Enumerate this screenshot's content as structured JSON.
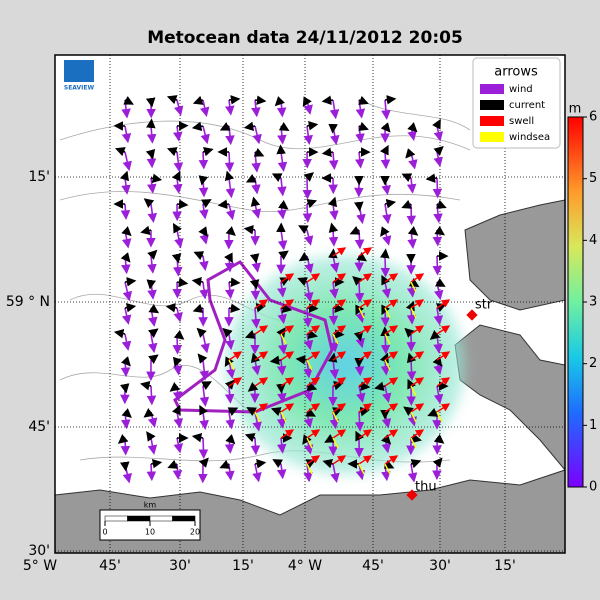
{
  "title": "Metocean data 24/11/2012 20:05",
  "logo": "SEAVIEW",
  "x_axis": {
    "labels": [
      "5° W",
      "45'",
      "30'",
      "15'",
      "4° W",
      "45'",
      "30'",
      "15'"
    ]
  },
  "y_axis": {
    "labels": [
      "15'",
      "59 ° N",
      "45'",
      "30'"
    ]
  },
  "legend": {
    "title": "arrows",
    "entries": [
      {
        "label": "wind",
        "color": "#9b1fd8"
      },
      {
        "label": "current",
        "color": "#000000"
      },
      {
        "label": "swell",
        "color": "#ff0000"
      },
      {
        "label": "windsea",
        "color": "#ffff00"
      }
    ]
  },
  "colorbar": {
    "unit": "m",
    "lim": [
      0,
      6
    ],
    "ticks": [
      0,
      1,
      2,
      3,
      4,
      5,
      6
    ]
  },
  "stations": [
    {
      "label": "str"
    },
    {
      "label": "thu"
    }
  ],
  "scale_bar": {
    "unit": "km",
    "lim": [
      0,
      20
    ],
    "ticks": [
      0,
      10,
      20
    ]
  }
}
